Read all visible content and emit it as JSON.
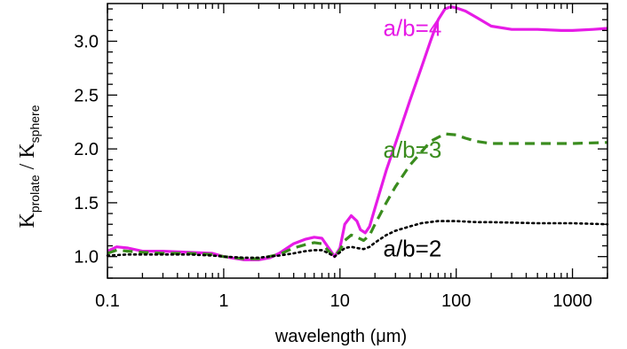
{
  "chart_data": {
    "type": "line",
    "xlabel": "wavelength (μm)",
    "ylabel": {
      "numerator": "K",
      "numerator_sub": "prolate",
      "separator": " / ",
      "denominator": "K",
      "denominator_sub": "sphere"
    },
    "xscale": "log",
    "xlim": [
      0.1,
      2000
    ],
    "ylim": [
      0.8,
      3.35
    ],
    "xticks": [
      {
        "value": 0.1,
        "label": "0.1"
      },
      {
        "value": 1,
        "label": "1"
      },
      {
        "value": 10,
        "label": "10"
      },
      {
        "value": 100,
        "label": "100"
      },
      {
        "value": 1000,
        "label": "1000"
      }
    ],
    "yticks": [
      {
        "value": 1.0,
        "label": "1.0"
      },
      {
        "value": 1.5,
        "label": "1.5"
      },
      {
        "value": 2.0,
        "label": "2.0"
      },
      {
        "value": 2.5,
        "label": "2.5"
      },
      {
        "value": 3.0,
        "label": "3.0"
      }
    ],
    "grid": false,
    "legend": "inline labels near curves",
    "series": [
      {
        "name": "a/b=4",
        "color": "#e61be6",
        "style": "solid",
        "label_at": [
          42,
          3.05
        ],
        "points": [
          [
            0.1,
            1.05
          ],
          [
            0.12,
            1.09
          ],
          [
            0.15,
            1.08
          ],
          [
            0.2,
            1.05
          ],
          [
            0.3,
            1.05
          ],
          [
            0.5,
            1.04
          ],
          [
            0.8,
            1.03
          ],
          [
            1.0,
            1.0
          ],
          [
            1.5,
            0.97
          ],
          [
            2.0,
            0.97
          ],
          [
            2.5,
            0.99
          ],
          [
            3.0,
            1.03
          ],
          [
            4.0,
            1.12
          ],
          [
            5.0,
            1.16
          ],
          [
            6.0,
            1.18
          ],
          [
            7.0,
            1.17
          ],
          [
            8.0,
            1.08
          ],
          [
            9.0,
            1.0
          ],
          [
            10.0,
            1.08
          ],
          [
            11.0,
            1.3
          ],
          [
            12.5,
            1.38
          ],
          [
            14.0,
            1.33
          ],
          [
            15.0,
            1.25
          ],
          [
            16.5,
            1.22
          ],
          [
            18.0,
            1.28
          ],
          [
            20.0,
            1.45
          ],
          [
            25.0,
            1.8
          ],
          [
            30.0,
            2.05
          ],
          [
            40.0,
            2.45
          ],
          [
            50.0,
            2.75
          ],
          [
            60.0,
            3.0
          ],
          [
            70.0,
            3.2
          ],
          [
            80.0,
            3.3
          ],
          [
            90.0,
            3.32
          ],
          [
            100.0,
            3.31
          ],
          [
            120.0,
            3.28
          ],
          [
            150.0,
            3.22
          ],
          [
            200.0,
            3.14
          ],
          [
            300.0,
            3.11
          ],
          [
            500.0,
            3.11
          ],
          [
            800.0,
            3.1
          ],
          [
            1000.0,
            3.1
          ],
          [
            1500.0,
            3.11
          ],
          [
            2000.0,
            3.12
          ]
        ]
      },
      {
        "name": "a/b=3",
        "color": "#3a8c1e",
        "style": "dashed",
        "label_at": [
          42,
          1.92
        ],
        "points": [
          [
            0.1,
            1.03
          ],
          [
            0.12,
            1.06
          ],
          [
            0.15,
            1.05
          ],
          [
            0.2,
            1.04
          ],
          [
            0.3,
            1.03
          ],
          [
            0.5,
            1.03
          ],
          [
            0.8,
            1.02
          ],
          [
            1.0,
            1.0
          ],
          [
            1.5,
            0.98
          ],
          [
            2.0,
            0.98
          ],
          [
            3.0,
            1.02
          ],
          [
            4.0,
            1.08
          ],
          [
            5.0,
            1.11
          ],
          [
            6.0,
            1.13
          ],
          [
            7.0,
            1.12
          ],
          [
            8.0,
            1.05
          ],
          [
            9.0,
            1.0
          ],
          [
            10.0,
            1.06
          ],
          [
            11.0,
            1.15
          ],
          [
            12.5,
            1.2
          ],
          [
            14.0,
            1.18
          ],
          [
            16.0,
            1.15
          ],
          [
            18.0,
            1.2
          ],
          [
            20.0,
            1.3
          ],
          [
            25.0,
            1.5
          ],
          [
            30.0,
            1.65
          ],
          [
            40.0,
            1.85
          ],
          [
            50.0,
            1.97
          ],
          [
            60.0,
            2.07
          ],
          [
            80.0,
            2.14
          ],
          [
            100.0,
            2.13
          ],
          [
            120.0,
            2.1
          ],
          [
            150.0,
            2.07
          ],
          [
            200.0,
            2.05
          ],
          [
            500.0,
            2.05
          ],
          [
            1000.0,
            2.05
          ],
          [
            2000.0,
            2.06
          ]
        ]
      },
      {
        "name": "a/b=2",
        "color": "#000000",
        "style": "dotted",
        "label_at": [
          42,
          1.0
        ],
        "points": [
          [
            0.1,
            1.01
          ],
          [
            0.15,
            1.02
          ],
          [
            0.2,
            1.02
          ],
          [
            0.3,
            1.02
          ],
          [
            0.5,
            1.02
          ],
          [
            0.8,
            1.01
          ],
          [
            1.0,
            1.0
          ],
          [
            1.5,
            0.99
          ],
          [
            2.0,
            0.99
          ],
          [
            3.0,
            1.01
          ],
          [
            4.0,
            1.03
          ],
          [
            5.0,
            1.05
          ],
          [
            6.0,
            1.06
          ],
          [
            7.0,
            1.06
          ],
          [
            8.0,
            1.03
          ],
          [
            9.0,
            1.0
          ],
          [
            10.0,
            1.04
          ],
          [
            11.0,
            1.08
          ],
          [
            12.5,
            1.09
          ],
          [
            14.0,
            1.08
          ],
          [
            16.0,
            1.07
          ],
          [
            18.0,
            1.09
          ],
          [
            20.0,
            1.13
          ],
          [
            25.0,
            1.2
          ],
          [
            30.0,
            1.24
          ],
          [
            40.0,
            1.28
          ],
          [
            50.0,
            1.31
          ],
          [
            70.0,
            1.33
          ],
          [
            100.0,
            1.33
          ],
          [
            150.0,
            1.32
          ],
          [
            200.0,
            1.32
          ],
          [
            500.0,
            1.31
          ],
          [
            1000.0,
            1.31
          ],
          [
            2000.0,
            1.3
          ]
        ]
      }
    ]
  }
}
